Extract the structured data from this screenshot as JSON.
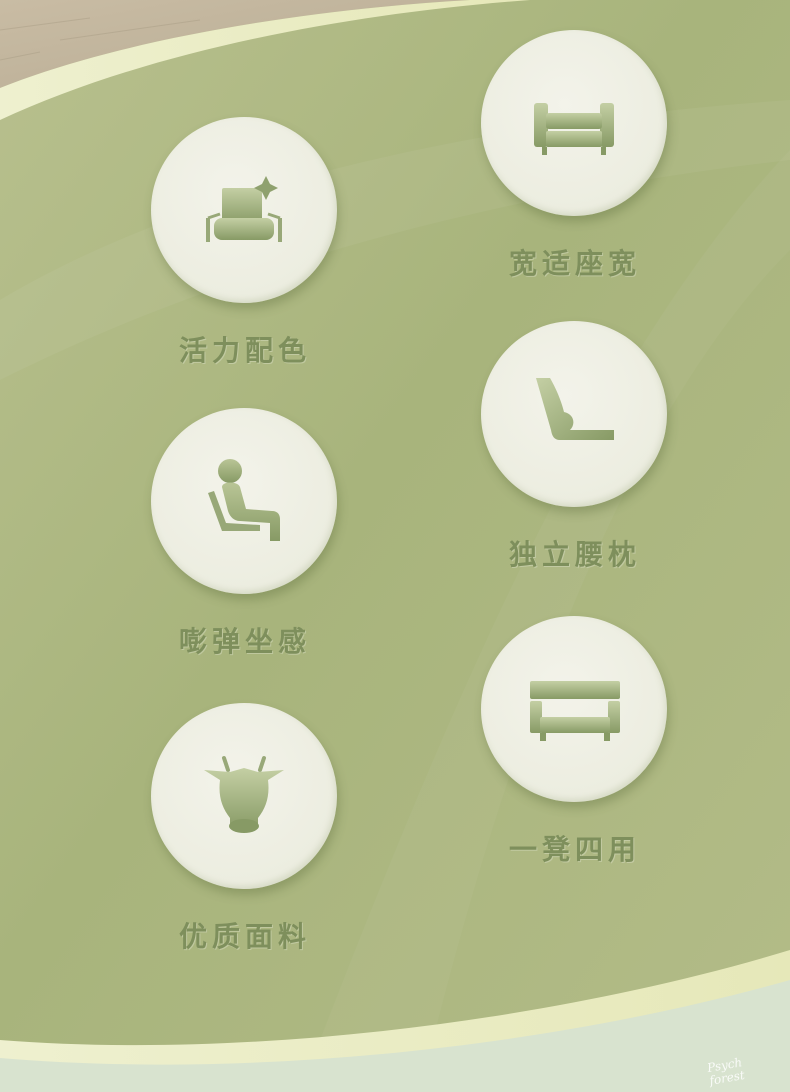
{
  "features": [
    {
      "id": "vibrant-colors",
      "label": "活力配色",
      "icon": "armchair-sparkle-icon"
    },
    {
      "id": "wide-seat",
      "label": "宽适座宽",
      "icon": "wide-sofa-icon"
    },
    {
      "id": "bouncy-seat",
      "label": "嘭弹坐感",
      "icon": "seated-person-icon"
    },
    {
      "id": "lumbar-pillow",
      "label": "独立腰枕",
      "icon": "lumbar-pillow-icon"
    },
    {
      "id": "quality-fabric",
      "label": "优质面料",
      "icon": "cowhide-icon"
    },
    {
      "id": "four-uses",
      "label": "一凳四用",
      "icon": "convertible-stool-icon"
    }
  ],
  "brand": {
    "line1": "Psych",
    "line2": "forest"
  },
  "colors": {
    "background": "#a9b67e",
    "circle": "#efefe4",
    "label": "#7e8f5c",
    "icon": "#98a878"
  }
}
